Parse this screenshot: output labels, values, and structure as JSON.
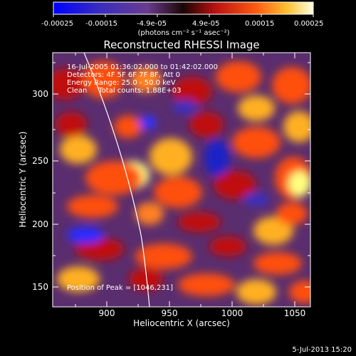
{
  "colorbar": {
    "tick_labels": [
      "-0.00025",
      "-0.00015",
      "-4.9e-05",
      "4.9e-05",
      "0.00015",
      "0.00025"
    ],
    "unit_label": "(photons cm⁻² s⁻¹ asec⁻²)",
    "min": -0.00025,
    "max": 0.00025
  },
  "plot": {
    "title": "Reconstructed RHESSI Image",
    "xlabel": "Heliocentric X (arcsec)",
    "ylabel": "Heliocentric Y (arcsec)",
    "x_ticks": [
      "900",
      "950",
      "1000",
      "1050"
    ],
    "y_ticks": [
      "150",
      "200",
      "250",
      "300"
    ],
    "xlim": [
      862,
      1055
    ],
    "ylim": [
      138,
      330
    ]
  },
  "annotations": {
    "time_range": "16-Jul-2005 01:36:02.000 to 01:42:02.000",
    "detectors": "Detectors: 4F 5F 6F 7F 8F, Att 0",
    "energy_range": "Energy Range: 25.0 - 50.0 keV",
    "clean_counts": "Clean     Total counts: 1.88E+03",
    "peak_position": "Position of Peak = [1046,231]"
  },
  "footer": {
    "timestamp": "5-Jul-2013 15:20"
  },
  "colors": {
    "background": "#000000",
    "text": "#ffffff",
    "colormap": [
      "#0000ff",
      "#6a2a9e",
      "#6b3f7a",
      "#3a0a08",
      "#c01010",
      "#ff5010",
      "#ffb020",
      "#ffff80"
    ]
  }
}
